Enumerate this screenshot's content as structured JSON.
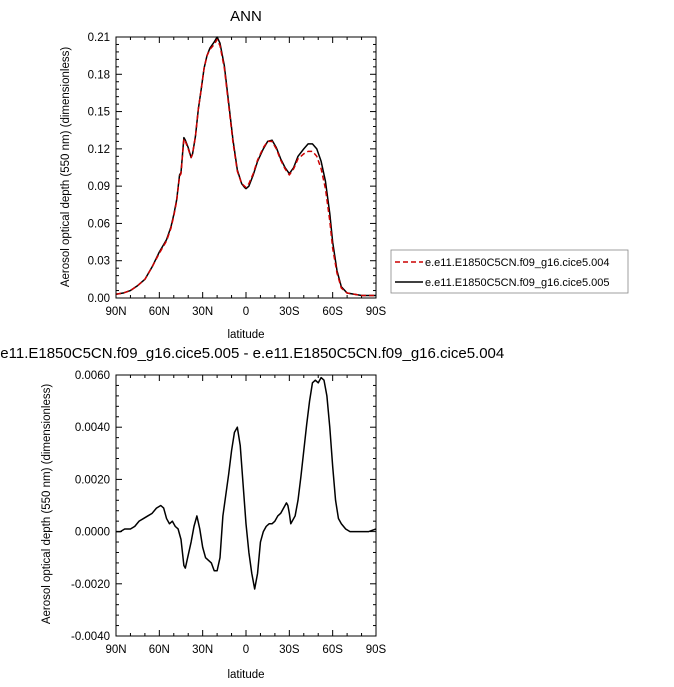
{
  "chart_data": [
    {
      "type": "line",
      "title": "ANN",
      "xlabel": "latitude",
      "ylabel": "Aerosol optical depth (550 nm) (dimensionless)",
      "xlim": [
        90,
        -90
      ],
      "ylim": [
        0,
        0.21
      ],
      "x_ticks": [
        90,
        60,
        30,
        0,
        -30,
        -60,
        -90
      ],
      "x_tick_labels": [
        "90N",
        "60N",
        "30N",
        "0",
        "30S",
        "60S",
        "90S"
      ],
      "y_ticks": [
        0,
        0.03,
        0.06,
        0.09,
        0.12,
        0.15,
        0.18,
        0.21
      ],
      "y_tick_labels": [
        "0.00",
        "0.03",
        "0.06",
        "0.09",
        "0.12",
        "0.15",
        "0.18",
        "0.21"
      ],
      "legend_position": "right",
      "grid": false,
      "series": [
        {
          "name": "e.e11.E1850C5CN.f09_g16.cice5.004",
          "color": "#cc0000",
          "dash": "dashed",
          "x": [
            90,
            85,
            80,
            75,
            70,
            65,
            60,
            55,
            52,
            50,
            48,
            46,
            45,
            43,
            42,
            40,
            38,
            37,
            35,
            33,
            31,
            29,
            27,
            25,
            22,
            20,
            18,
            15,
            12,
            9,
            6,
            3,
            1,
            0,
            -2,
            -5,
            -8,
            -12,
            -15,
            -18,
            -21,
            -24,
            -27,
            -30,
            -33,
            -36,
            -40,
            -43,
            -46,
            -49,
            -52,
            -55,
            -58,
            -60,
            -63,
            -66,
            -70,
            -75,
            -80,
            -85,
            -90
          ],
          "y": [
            0.003,
            0.004,
            0.006,
            0.01,
            0.015,
            0.025,
            0.036,
            0.046,
            0.056,
            0.066,
            0.078,
            0.098,
            0.1,
            0.128,
            0.126,
            0.12,
            0.113,
            0.116,
            0.13,
            0.152,
            0.168,
            0.185,
            0.195,
            0.2,
            0.204,
            0.208,
            0.203,
            0.185,
            0.155,
            0.125,
            0.102,
            0.092,
            0.09,
            0.089,
            0.092,
            0.1,
            0.111,
            0.121,
            0.126,
            0.126,
            0.12,
            0.111,
            0.104,
            0.099,
            0.104,
            0.112,
            0.116,
            0.118,
            0.118,
            0.114,
            0.104,
            0.088,
            0.062,
            0.04,
            0.02,
            0.008,
            0.004,
            0.003,
            0.002,
            0.002,
            0.002
          ]
        },
        {
          "name": "e.e11.E1850C5CN.f09_g16.cice5.005",
          "color": "#000000",
          "dash": "solid",
          "x": [
            90,
            85,
            80,
            75,
            70,
            65,
            60,
            55,
            52,
            50,
            48,
            46,
            45,
            43,
            42,
            40,
            38,
            37,
            35,
            33,
            31,
            29,
            27,
            25,
            22,
            20,
            18,
            15,
            12,
            9,
            6,
            3,
            1,
            0,
            -2,
            -5,
            -8,
            -12,
            -15,
            -18,
            -21,
            -24,
            -27,
            -30,
            -33,
            -36,
            -40,
            -43,
            -46,
            -49,
            -52,
            -55,
            -58,
            -60,
            -63,
            -66,
            -70,
            -75,
            -80,
            -85,
            -90
          ],
          "y": [
            0.003,
            0.004,
            0.006,
            0.01,
            0.015,
            0.025,
            0.037,
            0.047,
            0.057,
            0.067,
            0.079,
            0.099,
            0.101,
            0.129,
            0.127,
            0.121,
            0.113,
            0.116,
            0.13,
            0.152,
            0.168,
            0.185,
            0.195,
            0.201,
            0.206,
            0.21,
            0.205,
            0.187,
            0.157,
            0.127,
            0.103,
            0.092,
            0.089,
            0.088,
            0.09,
            0.099,
            0.11,
            0.12,
            0.126,
            0.127,
            0.121,
            0.112,
            0.105,
            0.1,
            0.105,
            0.114,
            0.12,
            0.124,
            0.124,
            0.12,
            0.11,
            0.094,
            0.068,
            0.045,
            0.022,
            0.009,
            0.004,
            0.003,
            0.002,
            0.002,
            0.002
          ]
        }
      ]
    },
    {
      "type": "line",
      "title": "e.e11.E1850C5CN.f09_g16.cice5.005 - e.e11.E1850C5CN.f09_g16.cice5.004",
      "xlabel": "latitude",
      "ylabel": "Aerosol optical depth (550 nm) (dimensionless)",
      "xlim": [
        90,
        -90
      ],
      "ylim": [
        -0.004,
        0.006
      ],
      "x_ticks": [
        90,
        60,
        30,
        0,
        -30,
        -60,
        -90
      ],
      "x_tick_labels": [
        "90N",
        "60N",
        "30N",
        "0",
        "30S",
        "60S",
        "90S"
      ],
      "y_ticks": [
        -0.004,
        -0.002,
        0,
        0.002,
        0.004,
        0.006
      ],
      "y_tick_labels": [
        "-0.0040",
        "-0.0020",
        "0.0000",
        "0.0020",
        "0.0040",
        "0.0060"
      ],
      "grid": false,
      "series": [
        {
          "color": "#000000",
          "dash": "solid",
          "x": [
            90,
            87,
            84,
            80,
            77,
            74,
            71,
            68,
            65,
            62,
            59,
            57,
            55,
            53,
            51,
            49,
            47,
            45,
            44,
            43,
            42,
            40,
            38,
            36,
            34,
            32,
            30,
            28,
            26,
            24,
            22,
            20,
            18,
            17,
            16,
            14,
            12,
            10,
            8,
            6,
            4,
            2,
            0,
            -2,
            -4,
            -6,
            -8,
            -10,
            -12,
            -14,
            -16,
            -18,
            -20,
            -22,
            -24,
            -26,
            -28,
            -29,
            -30,
            -31,
            -32,
            -34,
            -36,
            -38,
            -40,
            -42,
            -44,
            -46,
            -48,
            -50,
            -52,
            -54,
            -56,
            -58,
            -60,
            -62,
            -64,
            -66,
            -69,
            -72,
            -76,
            -80,
            -85,
            -90
          ],
          "y": [
            0.0,
            0.0,
            0.0001,
            0.0001,
            0.0002,
            0.0004,
            0.0005,
            0.0006,
            0.0007,
            0.0009,
            0.001,
            0.0009,
            0.0005,
            0.0003,
            0.0004,
            0.0002,
            0.0001,
            -0.0003,
            -0.0008,
            -0.0013,
            -0.0014,
            -0.0009,
            -0.0004,
            0.0002,
            0.0006,
            0.0001,
            -0.0006,
            -0.001,
            -0.0011,
            -0.0012,
            -0.0015,
            -0.0015,
            -0.001,
            -0.0002,
            0.0006,
            0.0014,
            0.0022,
            0.0031,
            0.0038,
            0.004,
            0.0033,
            0.0018,
            0.0003,
            -0.0008,
            -0.0016,
            -0.0022,
            -0.0016,
            -0.0004,
            0.0,
            0.0002,
            0.0003,
            0.0003,
            0.0004,
            0.0006,
            0.0007,
            0.0009,
            0.0011,
            0.001,
            0.0007,
            0.0003,
            0.0004,
            0.0006,
            0.0012,
            0.0021,
            0.0031,
            0.0041,
            0.005,
            0.0057,
            0.0058,
            0.0057,
            0.0059,
            0.0058,
            0.0052,
            0.004,
            0.0025,
            0.0012,
            0.0005,
            0.0003,
            0.0001,
            0.0,
            0.0,
            0.0,
            0.0,
            0.0001
          ]
        }
      ]
    }
  ]
}
